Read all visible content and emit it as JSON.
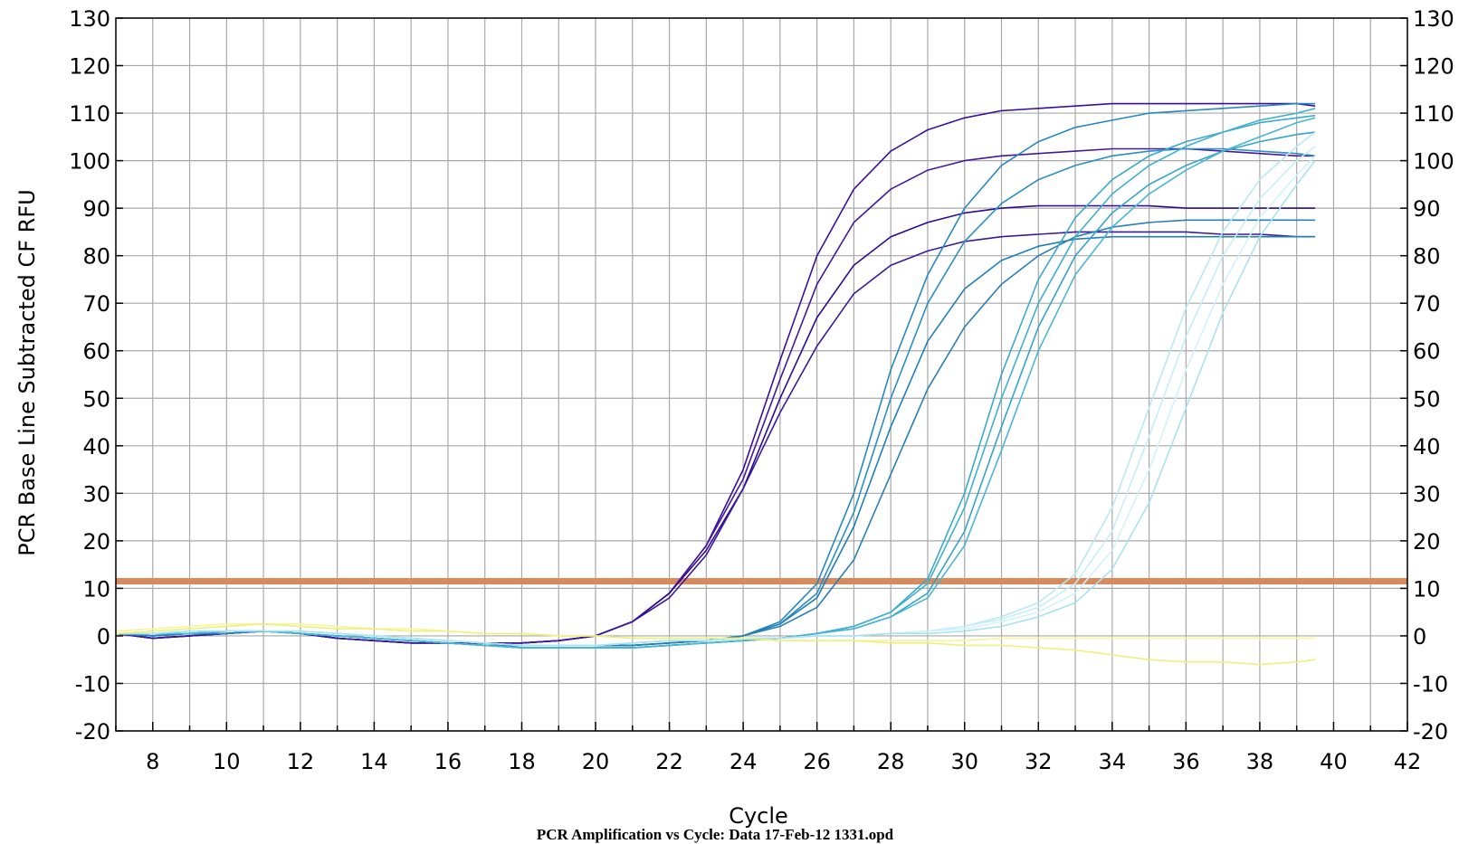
{
  "chart_data": {
    "type": "line",
    "title": "",
    "xlabel": "Cycle",
    "ylabel": "PCR Base Line Subtracted CF RFU",
    "caption": "PCR Amplification vs Cycle: Data 17-Feb-12 1331.opd",
    "xlim": [
      7,
      42
    ],
    "ylim": [
      -20,
      130
    ],
    "x_ticks": [
      8,
      10,
      12,
      14,
      16,
      18,
      20,
      22,
      24,
      26,
      28,
      30,
      32,
      34,
      36,
      38,
      40,
      42
    ],
    "y_ticks": [
      -20,
      -10,
      0,
      10,
      20,
      30,
      40,
      50,
      60,
      70,
      80,
      90,
      100,
      110,
      120,
      130
    ],
    "grid": true,
    "threshold": {
      "value": 11.5,
      "color": "#d98a5c"
    },
    "x": [
      7,
      8,
      9,
      10,
      11,
      12,
      13,
      14,
      15,
      16,
      17,
      18,
      19,
      20,
      21,
      22,
      23,
      24,
      25,
      26,
      27,
      28,
      29,
      30,
      31,
      32,
      33,
      34,
      35,
      36,
      37,
      38,
      39,
      39.5
    ],
    "series": [
      {
        "color": "#3b0f9c",
        "values": [
          0.5,
          -0.5,
          0.0,
          0.5,
          1.0,
          0.5,
          -0.5,
          -1.0,
          -1.5,
          -1.5,
          -1.5,
          -1.5,
          -1.0,
          0.0,
          3.0,
          9.0,
          19.0,
          35.0,
          58.0,
          80.0,
          94.0,
          102.0,
          106.5,
          109.0,
          110.5,
          111.0,
          111.5,
          112.0,
          112.0,
          112.0,
          112.0,
          112.0,
          112.0,
          111.5
        ]
      },
      {
        "color": "#45189e",
        "values": [
          0.5,
          -0.5,
          0.0,
          0.5,
          1.0,
          0.5,
          -0.5,
          -1.0,
          -1.5,
          -1.5,
          -1.5,
          -1.5,
          -1.0,
          0.0,
          3.0,
          9.0,
          19.0,
          33.0,
          54.0,
          74.0,
          87.0,
          94.0,
          98.0,
          100.0,
          101.0,
          101.5,
          102.0,
          102.5,
          102.5,
          102.5,
          102.0,
          101.5,
          101.0,
          101.0
        ]
      },
      {
        "color": "#2e0a94",
        "values": [
          0.5,
          -0.5,
          0.0,
          0.5,
          1.0,
          0.5,
          -0.5,
          -1.0,
          -1.5,
          -1.5,
          -1.5,
          -1.5,
          -1.0,
          0.0,
          3.0,
          9.0,
          18.0,
          31.0,
          50.0,
          67.0,
          78.0,
          84.0,
          87.0,
          89.0,
          90.0,
          90.5,
          90.5,
          90.5,
          90.5,
          90.0,
          90.0,
          90.0,
          90.0,
          90.0
        ]
      },
      {
        "color": "#3a1a9c",
        "values": [
          0.5,
          -0.5,
          0.0,
          0.5,
          1.0,
          0.5,
          -0.5,
          -1.0,
          -1.5,
          -1.5,
          -1.5,
          -1.5,
          -1.0,
          0.0,
          3.0,
          8.0,
          17.0,
          31.0,
          47.0,
          61.0,
          72.0,
          78.0,
          81.0,
          83.0,
          84.0,
          84.5,
          85.0,
          85.0,
          85.0,
          85.0,
          84.5,
          84.5,
          84.0,
          84.0
        ]
      },
      {
        "color": "#2788c0",
        "values": [
          0.5,
          0.0,
          0.5,
          0.5,
          1.0,
          0.5,
          0.0,
          -0.5,
          -1.0,
          -1.5,
          -2.0,
          -2.0,
          -2.0,
          -2.0,
          -2.0,
          -1.5,
          -1.0,
          0.0,
          3.0,
          11.0,
          30.0,
          56.0,
          76.0,
          90.0,
          99.0,
          104.0,
          107.0,
          108.5,
          110.0,
          110.5,
          111.0,
          111.5,
          112.0,
          112.0
        ]
      },
      {
        "color": "#2a8fc2",
        "values": [
          0.5,
          0.0,
          0.5,
          0.5,
          1.0,
          0.5,
          0.0,
          -0.5,
          -1.0,
          -1.5,
          -2.0,
          -2.0,
          -2.0,
          -2.0,
          -2.0,
          -1.5,
          -1.0,
          0.0,
          2.5,
          9.0,
          26.0,
          50.0,
          70.0,
          83.0,
          91.0,
          96.0,
          99.0,
          101.0,
          102.0,
          102.5,
          102.5,
          102.0,
          101.5,
          101.0
        ]
      },
      {
        "color": "#1f7fb8",
        "values": [
          0.5,
          0.0,
          0.5,
          0.5,
          1.0,
          0.5,
          0.0,
          -0.5,
          -1.0,
          -1.5,
          -2.0,
          -2.0,
          -2.0,
          -2.0,
          -2.0,
          -1.5,
          -1.0,
          0.0,
          2.5,
          8.0,
          23.0,
          44.0,
          62.0,
          73.0,
          79.0,
          82.0,
          83.5,
          84.0,
          84.0,
          84.0,
          84.0,
          84.0,
          84.0,
          84.0
        ]
      },
      {
        "color": "#2b7fb5",
        "values": [
          0.5,
          0.0,
          0.5,
          0.5,
          1.0,
          0.5,
          0.0,
          -0.5,
          -1.0,
          -1.5,
          -2.0,
          -2.0,
          -2.0,
          -2.0,
          -2.0,
          -1.5,
          -1.0,
          0.0,
          2.0,
          6.0,
          16.0,
          34.0,
          52.0,
          65.0,
          74.0,
          80.0,
          84.0,
          86.0,
          87.0,
          87.5,
          87.5,
          87.5,
          87.5,
          87.5
        ]
      },
      {
        "color": "#3aa9cc",
        "values": [
          0.5,
          0.5,
          0.5,
          1.0,
          1.0,
          0.5,
          0.0,
          -0.5,
          -1.0,
          -1.5,
          -2.0,
          -2.5,
          -2.5,
          -2.5,
          -2.5,
          -2.0,
          -1.5,
          -1.0,
          -0.5,
          0.5,
          2.0,
          5.0,
          12.0,
          30.0,
          55.0,
          75.0,
          88.0,
          96.0,
          101.0,
          104.0,
          106.0,
          108.0,
          109.0,
          109.5
        ]
      },
      {
        "color": "#40b0d0",
        "values": [
          0.5,
          0.5,
          0.5,
          1.0,
          1.0,
          0.5,
          0.0,
          -0.5,
          -1.0,
          -1.5,
          -2.0,
          -2.5,
          -2.5,
          -2.5,
          -2.5,
          -2.0,
          -1.5,
          -1.0,
          -0.5,
          0.5,
          2.0,
          5.0,
          11.0,
          27.0,
          50.0,
          70.0,
          84.0,
          93.0,
          99.0,
          103.0,
          106.0,
          108.5,
          110.0,
          111.0
        ]
      },
      {
        "color": "#36a4c8",
        "values": [
          0.5,
          0.5,
          0.5,
          1.0,
          1.0,
          0.5,
          0.0,
          -0.5,
          -1.0,
          -1.5,
          -2.0,
          -2.5,
          -2.5,
          -2.5,
          -2.5,
          -2.0,
          -1.5,
          -1.0,
          -0.5,
          0.5,
          1.5,
          4.0,
          9.0,
          22.0,
          44.0,
          65.0,
          80.0,
          89.0,
          95.0,
          99.0,
          102.0,
          104.0,
          105.5,
          106.0
        ]
      },
      {
        "color": "#48b6d4",
        "values": [
          0.5,
          0.5,
          0.5,
          1.0,
          1.0,
          0.5,
          0.0,
          -0.5,
          -1.0,
          -1.5,
          -2.0,
          -2.5,
          -2.5,
          -2.5,
          -2.5,
          -2.0,
          -1.5,
          -1.0,
          -0.5,
          0.5,
          1.5,
          4.0,
          8.0,
          19.0,
          39.0,
          60.0,
          76.0,
          86.0,
          93.0,
          98.0,
          102.0,
          105.0,
          108.0,
          109.0
        ]
      },
      {
        "color": "#b8e8f4",
        "values": [
          0.5,
          0.5,
          1.0,
          1.0,
          1.0,
          1.0,
          0.5,
          0.0,
          -0.5,
          -1.0,
          -1.5,
          -2.0,
          -2.0,
          -2.0,
          -1.5,
          -1.0,
          -1.0,
          -0.5,
          -0.5,
          0.0,
          0.0,
          0.5,
          1.0,
          2.0,
          4.0,
          7.0,
          13.0,
          27.0,
          48.0,
          69.0,
          85.0,
          96.0,
          103.0,
          106.0
        ]
      },
      {
        "color": "#c6eef7",
        "values": [
          0.5,
          0.5,
          1.0,
          1.0,
          1.0,
          1.0,
          0.5,
          0.0,
          -0.5,
          -1.0,
          -1.5,
          -2.0,
          -2.0,
          -2.0,
          -1.5,
          -1.0,
          -1.0,
          -0.5,
          -0.5,
          0.0,
          0.0,
          0.5,
          1.0,
          2.0,
          3.5,
          6.0,
          11.0,
          22.0,
          42.0,
          63.0,
          80.0,
          92.0,
          100.0,
          103.0
        ]
      },
      {
        "color": "#d2f2fa",
        "values": [
          0.5,
          0.5,
          1.0,
          1.0,
          1.0,
          1.0,
          0.5,
          0.0,
          -0.5,
          -1.0,
          -1.5,
          -2.0,
          -2.0,
          -2.0,
          -1.5,
          -1.0,
          -1.0,
          -0.5,
          -0.5,
          0.0,
          0.0,
          0.5,
          1.0,
          1.5,
          3.0,
          5.0,
          9.0,
          18.0,
          35.0,
          56.0,
          74.0,
          88.0,
          97.0,
          101.0
        ]
      },
      {
        "color": "#a9e2f2",
        "values": [
          0.5,
          0.5,
          1.0,
          1.0,
          1.0,
          1.0,
          0.5,
          0.0,
          -0.5,
          -1.0,
          -1.5,
          -2.0,
          -2.0,
          -2.0,
          -1.5,
          -1.0,
          -1.0,
          -0.5,
          -0.5,
          0.0,
          0.0,
          0.5,
          0.5,
          1.0,
          2.0,
          4.0,
          7.0,
          14.0,
          28.0,
          48.0,
          68.0,
          84.0,
          95.0,
          100.0
        ]
      },
      {
        "color": "#f5f59a",
        "values": [
          1.0,
          1.5,
          2.0,
          2.5,
          2.5,
          2.5,
          2.0,
          1.5,
          1.5,
          1.0,
          0.5,
          0.5,
          0.0,
          0.0,
          -0.5,
          -0.5,
          -0.5,
          -0.5,
          -1.0,
          -1.0,
          -1.0,
          -1.0,
          -1.0,
          -1.0,
          -0.5,
          -0.5,
          -0.5,
          -0.5,
          -0.5,
          -0.5,
          -0.5,
          -0.5,
          -0.5,
          -0.5
        ]
      },
      {
        "color": "#eef07c",
        "values": [
          0.5,
          1.0,
          1.5,
          2.0,
          2.5,
          2.0,
          1.5,
          1.5,
          1.0,
          1.0,
          0.5,
          0.5,
          0.0,
          0.0,
          -0.5,
          -0.5,
          -0.5,
          -0.5,
          -1.0,
          -1.0,
          -1.0,
          -1.5,
          -1.5,
          -2.0,
          -2.0,
          -2.5,
          -3.0,
          -4.0,
          -5.0,
          -5.5,
          -5.5,
          -6.0,
          -5.5,
          -5.0
        ]
      }
    ]
  }
}
